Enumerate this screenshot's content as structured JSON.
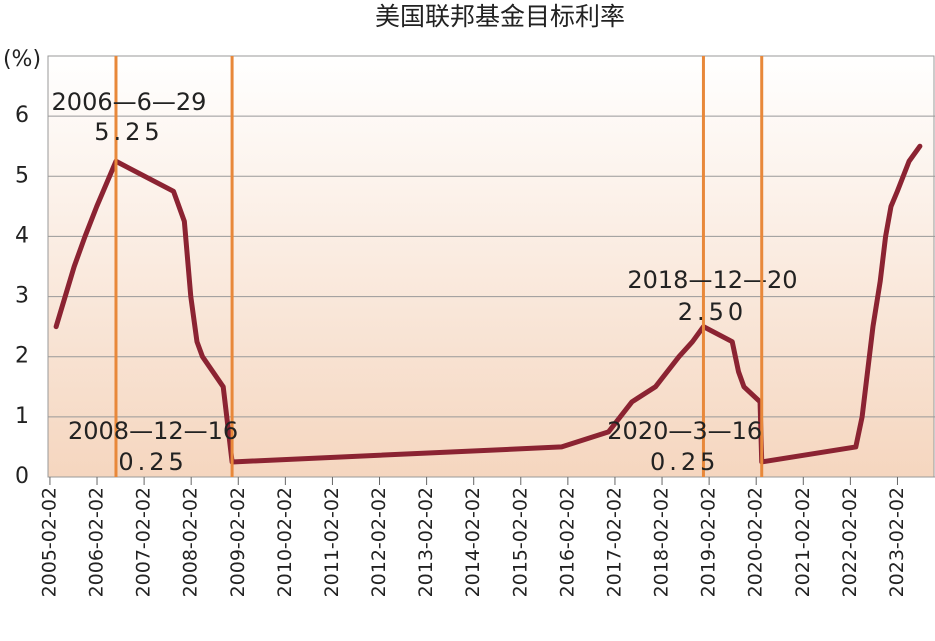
{
  "chart_data": {
    "type": "line",
    "title": "美国联邦基金目标利率",
    "y_label": "(%)",
    "x": [
      "2005-03-22",
      "2005-08-09",
      "2005-11-01",
      "2006-01-31",
      "2006-06-29",
      "2007-09-18",
      "2007-12-11",
      "2008-01-30",
      "2008-03-18",
      "2008-04-30",
      "2008-10-08",
      "2008-12-16",
      "2015-12-16",
      "2016-12-14",
      "2017-06-14",
      "2017-12-13",
      "2018-06-13",
      "2018-09-26",
      "2018-12-20",
      "2019-07-31",
      "2019-09-18",
      "2019-10-30",
      "2020-03-03",
      "2020-03-16",
      "2022-03-16",
      "2022-05-04",
      "2022-07-27",
      "2022-09-21",
      "2022-11-02",
      "2022-12-14",
      "2023-02-01",
      "2023-05-03",
      "2023-07-26"
    ],
    "series": [
      {
        "name": "美国联邦基金目标利率",
        "color": "#8b2332",
        "values": [
          2.5,
          3.5,
          4.0,
          4.5,
          5.25,
          4.75,
          4.25,
          3.0,
          2.25,
          2.0,
          1.5,
          0.25,
          0.5,
          0.75,
          1.25,
          1.5,
          2.0,
          2.25,
          2.5,
          2.25,
          1.75,
          1.5,
          1.25,
          0.25,
          0.5,
          1.0,
          2.5,
          3.25,
          4.0,
          4.5,
          4.75,
          5.25,
          5.5
        ]
      }
    ],
    "xlim": [
      "2005-01-18",
      "2023-11-20"
    ],
    "xticks": [
      "2005-02-02",
      "2006-02-02",
      "2007-02-02",
      "2008-02-02",
      "2009-02-02",
      "2010-02-02",
      "2011-02-02",
      "2012-02-02",
      "2013-02-02",
      "2014-02-02",
      "2015-02-02",
      "2016-02-02",
      "2017-02-02",
      "2018-02-02",
      "2019-02-02",
      "2020-02-02",
      "2021-02-02",
      "2022-02-02",
      "2023-02-02"
    ],
    "ylim": [
      0,
      7
    ],
    "yticks": [
      0,
      1,
      2,
      3,
      4,
      5,
      6
    ],
    "grid": true,
    "annotations": [
      {
        "x": "2006-06-29",
        "date_label": "2006—6—29",
        "value_label": "5.25",
        "color": "#e8883a"
      },
      {
        "x": "2008-12-16",
        "date_label": "2008—12—16",
        "value_label": "0.25",
        "color": "#e8883a"
      },
      {
        "x": "2018-12-20",
        "date_label": "2018—12—20",
        "value_label": "2.50",
        "color": "#e8883a"
      },
      {
        "x": "2020-03-16",
        "date_label": "2020—3—16",
        "value_label": "0.25",
        "color": "#e8883a"
      }
    ]
  }
}
